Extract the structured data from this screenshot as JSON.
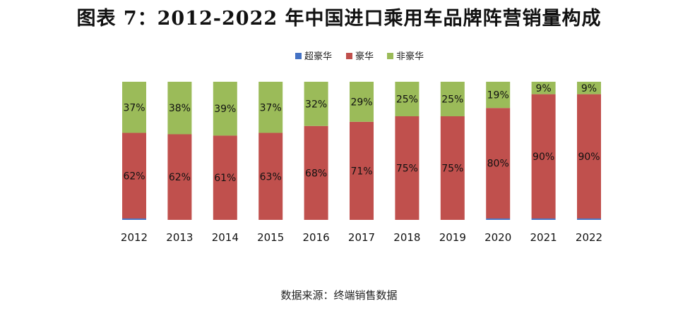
{
  "title": "图表 7：2012-2022 年中国进口乘用车品牌阵营销量构成",
  "source": "数据来源：终端销售数据",
  "chart_data": {
    "type": "bar",
    "stacked": true,
    "title": "图表 7：2012-2022 年中国进口乘用车品牌阵营销量构成",
    "xlabel": "",
    "ylabel": "",
    "ylim": [
      0,
      100
    ],
    "grid": false,
    "legend_position": "top-center",
    "categories": [
      "2012",
      "2013",
      "2014",
      "2015",
      "2016",
      "2017",
      "2018",
      "2019",
      "2020",
      "2021",
      "2022"
    ],
    "series": [
      {
        "name": "超豪华",
        "color": "#4472C4",
        "values": [
          1,
          0,
          0,
          0,
          0,
          0,
          0,
          0,
          1,
          1,
          1
        ],
        "labels": [
          "",
          "",
          "",
          "",
          "",
          "",
          "",
          "",
          "",
          "",
          ""
        ]
      },
      {
        "name": "豪华",
        "color": "#C0504D",
        "values": [
          62,
          62,
          61,
          63,
          68,
          71,
          75,
          75,
          80,
          90,
          90
        ],
        "labels": [
          "62%",
          "62%",
          "61%",
          "63%",
          "68%",
          "71%",
          "75%",
          "75%",
          "80%",
          "90%",
          "90%"
        ]
      },
      {
        "name": "非豪华",
        "color": "#9BBB59",
        "values": [
          37,
          38,
          39,
          37,
          32,
          29,
          25,
          25,
          19,
          9,
          9
        ],
        "labels": [
          "37%",
          "38%",
          "39%",
          "37%",
          "32%",
          "29%",
          "25%",
          "25%",
          "19%",
          "9%",
          "9%"
        ]
      }
    ]
  }
}
